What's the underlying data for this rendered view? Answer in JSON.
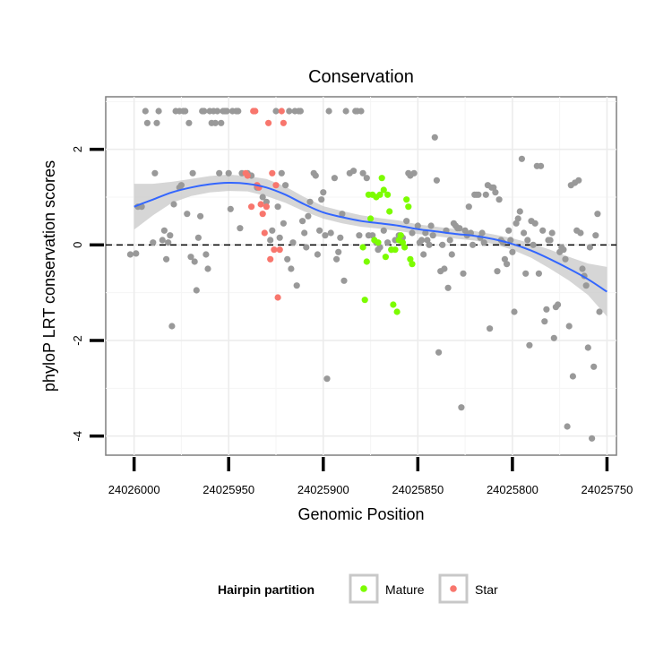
{
  "chart_data": {
    "type": "scatter",
    "title": "Conservation",
    "xlabel": "Genomic Position",
    "ylabel": "phyloP LRT conservation scores",
    "x_reversed": true,
    "xlim": [
      24026015,
      24025745
    ],
    "ylim": [
      -4.4,
      3.1
    ],
    "x_ticks": [
      24026000,
      24025950,
      24025900,
      24025850,
      24025800,
      24025750
    ],
    "x_tick_labels": [
      "24026000",
      "24025950",
      "24025900",
      "24025850",
      "24025800",
      "24025750"
    ],
    "y_ticks": [
      -4,
      -2,
      0,
      2
    ],
    "y_tick_labels": [
      "-4",
      "-2",
      "0",
      "2"
    ],
    "reference_line": {
      "y": 0,
      "style": "dashed"
    },
    "grid": true,
    "legend": {
      "title": "Hairpin partition",
      "position": "bottom",
      "entries": [
        {
          "label": "Mature",
          "color": "#7CFC00"
        },
        {
          "label": "Star",
          "color": "#F8766D"
        }
      ]
    },
    "colors": {
      "other": "#999999",
      "smooth": "#3366FF",
      "band": "#C8C8C8"
    },
    "series": [
      {
        "name": "",
        "color": "#999999",
        "points": [
          [
            24026002,
            -0.2
          ],
          [
            24025999,
            -0.18
          ],
          [
            24025998,
            0.8
          ],
          [
            24025996,
            0.8
          ],
          [
            24025994,
            2.8
          ],
          [
            24025993,
            2.55
          ],
          [
            24025990,
            0.05
          ],
          [
            24025989,
            1.5
          ],
          [
            24025988,
            2.55
          ],
          [
            24025987,
            2.8
          ],
          [
            24025985,
            0.1
          ],
          [
            24025984,
            0.3
          ],
          [
            24025983,
            -0.3
          ],
          [
            24025982,
            0.05
          ],
          [
            24025981,
            0.2
          ],
          [
            24025980,
            -1.7
          ],
          [
            24025979,
            0.85
          ],
          [
            24025978,
            2.8
          ],
          [
            24025976,
            2.8
          ],
          [
            24025976,
            1.2
          ],
          [
            24025975,
            1.25
          ],
          [
            24025974,
            2.8
          ],
          [
            24025973,
            2.8
          ],
          [
            24025972,
            0.65
          ],
          [
            24025971,
            2.55
          ],
          [
            24025970,
            -0.25
          ],
          [
            24025969,
            1.5
          ],
          [
            24025968,
            -0.35
          ],
          [
            24025967,
            -0.95
          ],
          [
            24025966,
            0.15
          ],
          [
            24025965,
            0.6
          ],
          [
            24025964,
            2.8
          ],
          [
            24025963,
            2.8
          ],
          [
            24025962,
            -0.2
          ],
          [
            24025961,
            -0.5
          ],
          [
            24025960,
            2.8
          ],
          [
            24025959,
            2.55
          ],
          [
            24025958,
            2.8
          ],
          [
            24025957,
            2.55
          ],
          [
            24025956,
            2.8
          ],
          [
            24025955,
            1.5
          ],
          [
            24025954,
            2.55
          ],
          [
            24025953,
            2.8
          ],
          [
            24025952,
            2.8
          ],
          [
            24025951,
            2.8
          ],
          [
            24025950,
            1.5
          ],
          [
            24025949,
            0.75
          ],
          [
            24025948,
            2.8
          ],
          [
            24025946,
            2.8
          ],
          [
            24025945,
            2.8
          ],
          [
            24025944,
            0.35
          ],
          [
            24025943,
            1.5
          ],
          [
            24025940,
            1.5
          ],
          [
            24025938,
            1.45
          ],
          [
            24025935,
            1.2
          ],
          [
            24025932,
            1.0
          ],
          [
            24025930,
            0.9
          ],
          [
            24025928,
            0.1
          ],
          [
            24025927,
            0.3
          ],
          [
            24025925,
            2.8
          ],
          [
            24025924,
            0.8
          ],
          [
            24025923,
            0.15
          ],
          [
            24025922,
            1.5
          ],
          [
            24025921,
            0.45
          ],
          [
            24025920,
            1.25
          ],
          [
            24025919,
            -0.3
          ],
          [
            24025918,
            2.8
          ],
          [
            24025917,
            -0.5
          ],
          [
            24025916,
            0.05
          ],
          [
            24025915,
            2.8
          ],
          [
            24025914,
            -0.85
          ],
          [
            24025913,
            2.8
          ],
          [
            24025912,
            2.8
          ],
          [
            24025911,
            0.5
          ],
          [
            24025910,
            0.25
          ],
          [
            24025909,
            -0.05
          ],
          [
            24025908,
            0.6
          ],
          [
            24025907,
            0.9
          ],
          [
            24025905,
            1.5
          ],
          [
            24025904,
            1.45
          ],
          [
            24025903,
            -0.2
          ],
          [
            24025902,
            0.3
          ],
          [
            24025901,
            0.95
          ],
          [
            24025900,
            1.1
          ],
          [
            24025899,
            0.2
          ],
          [
            24025898,
            -2.8
          ],
          [
            24025897,
            2.8
          ],
          [
            24025896,
            0.25
          ],
          [
            24025894,
            1.4
          ],
          [
            24025893,
            -0.3
          ],
          [
            24025892,
            -0.15
          ],
          [
            24025891,
            0.15
          ],
          [
            24025890,
            0.65
          ],
          [
            24025889,
            -0.75
          ],
          [
            24025888,
            2.8
          ],
          [
            24025886,
            1.5
          ],
          [
            24025884,
            1.55
          ],
          [
            24025883,
            2.8
          ],
          [
            24025882,
            2.8
          ],
          [
            24025881,
            0.2
          ],
          [
            24025880,
            2.8
          ],
          [
            24025879,
            1.5
          ],
          [
            24025877,
            1.4
          ],
          [
            24025876,
            0.2
          ],
          [
            24025874,
            0.2
          ],
          [
            24025872,
            0.05
          ],
          [
            24025871,
            -0.1
          ],
          [
            24025870,
            -0.05
          ],
          [
            24025868,
            0.3
          ],
          [
            24025866,
            0.05
          ],
          [
            24025864,
            -0.1
          ],
          [
            24025862,
            0.1
          ],
          [
            24025860,
            0.2
          ],
          [
            24025858,
            0.15
          ],
          [
            24025856,
            0.5
          ],
          [
            24025855,
            1.5
          ],
          [
            24025854,
            1.45
          ],
          [
            24025853,
            0.25
          ],
          [
            24025852,
            1.5
          ],
          [
            24025850,
            0.4
          ],
          [
            24025849,
            0.05
          ],
          [
            24025848,
            0.1
          ],
          [
            24025847,
            -0.2
          ],
          [
            24025846,
            0.25
          ],
          [
            24025845,
            0.1
          ],
          [
            24025844,
            0.0
          ],
          [
            24025843,
            0.4
          ],
          [
            24025842,
            0.2
          ],
          [
            24025841,
            2.25
          ],
          [
            24025840,
            1.35
          ],
          [
            24025839,
            -2.25
          ],
          [
            24025838,
            -0.55
          ],
          [
            24025837,
            0.0
          ],
          [
            24025836,
            -0.5
          ],
          [
            24025835,
            0.3
          ],
          [
            24025834,
            -0.9
          ],
          [
            24025833,
            0.1
          ],
          [
            24025832,
            -0.2
          ],
          [
            24025831,
            0.45
          ],
          [
            24025830,
            0.4
          ],
          [
            24025829,
            0.35
          ],
          [
            24025828,
            0.35
          ],
          [
            24025827,
            -3.4
          ],
          [
            24025826,
            -0.6
          ],
          [
            24025825,
            0.3
          ],
          [
            24025824,
            0.2
          ],
          [
            24025823,
            0.8
          ],
          [
            24025822,
            0.25
          ],
          [
            24025821,
            0.0
          ],
          [
            24025820,
            1.05
          ],
          [
            24025819,
            1.05
          ],
          [
            24025818,
            1.05
          ],
          [
            24025817,
            0.15
          ],
          [
            24025816,
            0.25
          ],
          [
            24025815,
            0.05
          ],
          [
            24025814,
            1.05
          ],
          [
            24025813,
            1.25
          ],
          [
            24025812,
            -1.75
          ],
          [
            24025811,
            1.2
          ],
          [
            24025810,
            1.2
          ],
          [
            24025809,
            1.1
          ],
          [
            24025808,
            -0.55
          ],
          [
            24025807,
            0.95
          ],
          [
            24025806,
            0.1
          ],
          [
            24025805,
            0.05
          ],
          [
            24025804,
            -0.3
          ],
          [
            24025803,
            -0.4
          ],
          [
            24025802,
            0.3
          ],
          [
            24025801,
            0.1
          ],
          [
            24025800,
            -0.15
          ],
          [
            24025799,
            -1.4
          ],
          [
            24025798,
            0.45
          ],
          [
            24025797,
            0.55
          ],
          [
            24025796,
            0.7
          ],
          [
            24025795,
            1.8
          ],
          [
            24025794,
            0.25
          ],
          [
            24025793,
            -0.6
          ],
          [
            24025792,
            0.1
          ],
          [
            24025791,
            -2.1
          ],
          [
            24025790,
            0.5
          ],
          [
            24025789,
            0.0
          ],
          [
            24025788,
            0.45
          ],
          [
            24025787,
            1.65
          ],
          [
            24025786,
            -0.6
          ],
          [
            24025785,
            1.65
          ],
          [
            24025784,
            0.3
          ],
          [
            24025783,
            -1.6
          ],
          [
            24025782,
            -1.35
          ],
          [
            24025781,
            0.1
          ],
          [
            24025780,
            0.1
          ],
          [
            24025779,
            0.25
          ],
          [
            24025778,
            -1.95
          ],
          [
            24025777,
            -1.3
          ],
          [
            24025776,
            -1.25
          ],
          [
            24025775,
            -0.15
          ],
          [
            24025774,
            -0.05
          ],
          [
            24025773,
            -0.1
          ],
          [
            24025772,
            -0.3
          ],
          [
            24025771,
            -3.8
          ],
          [
            24025770,
            -1.7
          ],
          [
            24025769,
            1.25
          ],
          [
            24025768,
            -2.75
          ],
          [
            24025767,
            1.3
          ],
          [
            24025766,
            0.3
          ],
          [
            24025765,
            1.35
          ],
          [
            24025764,
            0.25
          ],
          [
            24025763,
            -0.5
          ],
          [
            24025762,
            -0.65
          ],
          [
            24025761,
            -0.85
          ],
          [
            24025760,
            -2.15
          ],
          [
            24025759,
            -0.05
          ],
          [
            24025758,
            -4.05
          ],
          [
            24025757,
            -2.55
          ],
          [
            24025756,
            0.2
          ],
          [
            24025755,
            0.65
          ],
          [
            24025754,
            -1.4
          ]
        ]
      },
      {
        "name": "Mature",
        "color": "#7CFC00",
        "points": [
          [
            24025879,
            -0.05
          ],
          [
            24025878,
            -1.15
          ],
          [
            24025877,
            -0.35
          ],
          [
            24025876,
            1.05
          ],
          [
            24025875,
            0.55
          ],
          [
            24025874,
            1.05
          ],
          [
            24025873,
            0.1
          ],
          [
            24025872,
            1.0
          ],
          [
            24025871,
            0.05
          ],
          [
            24025870,
            1.05
          ],
          [
            24025869,
            1.4
          ],
          [
            24025868,
            1.15
          ],
          [
            24025867,
            -0.25
          ],
          [
            24025866,
            1.05
          ],
          [
            24025865,
            0.7
          ],
          [
            24025864,
            -0.1
          ],
          [
            24025863,
            -1.25
          ],
          [
            24025862,
            -0.1
          ],
          [
            24025861,
            -1.4
          ],
          [
            24025860,
            0.1
          ],
          [
            24025859,
            0.2
          ],
          [
            24025858,
            0.05
          ],
          [
            24025857,
            -0.05
          ],
          [
            24025856,
            0.95
          ],
          [
            24025855,
            0.8
          ],
          [
            24025854,
            -0.3
          ],
          [
            24025853,
            -0.4
          ]
        ]
      },
      {
        "name": "Star",
        "color": "#F8766D",
        "points": [
          [
            24025941,
            1.5
          ],
          [
            24025940,
            1.45
          ],
          [
            24025938,
            0.8
          ],
          [
            24025937,
            2.8
          ],
          [
            24025936,
            2.8
          ],
          [
            24025935,
            1.25
          ],
          [
            24025934,
            1.2
          ],
          [
            24025933,
            0.85
          ],
          [
            24025932,
            0.65
          ],
          [
            24025931,
            0.25
          ],
          [
            24025930,
            0.8
          ],
          [
            24025929,
            2.55
          ],
          [
            24025928,
            -0.3
          ],
          [
            24025927,
            1.5
          ],
          [
            24025926,
            -0.1
          ],
          [
            24025925,
            1.25
          ],
          [
            24025924,
            -1.1
          ],
          [
            24025923,
            -0.1
          ],
          [
            24025922,
            2.8
          ],
          [
            24025921,
            2.55
          ]
        ]
      }
    ],
    "smooth": {
      "x": [
        24026000,
        24025990,
        24025980,
        24025970,
        24025960,
        24025950,
        24025940,
        24025930,
        24025920,
        24025910,
        24025900,
        24025890,
        24025880,
        24025870,
        24025860,
        24025850,
        24025840,
        24025830,
        24025820,
        24025810,
        24025800,
        24025790,
        24025780,
        24025770,
        24025760,
        24025750
      ],
      "y": [
        0.8,
        0.95,
        1.1,
        1.2,
        1.27,
        1.3,
        1.28,
        1.2,
        1.05,
        0.85,
        0.68,
        0.58,
        0.5,
        0.45,
        0.4,
        0.33,
        0.28,
        0.23,
        0.19,
        0.12,
        0.02,
        -0.12,
        -0.3,
        -0.5,
        -0.72,
        -0.98
      ],
      "lower": [
        0.32,
        0.62,
        0.88,
        1.02,
        1.1,
        1.13,
        1.12,
        1.02,
        0.88,
        0.7,
        0.55,
        0.45,
        0.38,
        0.34,
        0.29,
        0.23,
        0.18,
        0.13,
        0.09,
        0.02,
        -0.1,
        -0.27,
        -0.5,
        -0.75,
        -1.05,
        -1.5
      ],
      "upper": [
        1.28,
        1.28,
        1.32,
        1.38,
        1.44,
        1.47,
        1.44,
        1.38,
        1.22,
        1.0,
        0.81,
        0.71,
        0.62,
        0.56,
        0.51,
        0.43,
        0.38,
        0.33,
        0.29,
        0.22,
        0.14,
        0.03,
        -0.1,
        -0.25,
        -0.39,
        -0.46
      ]
    }
  }
}
